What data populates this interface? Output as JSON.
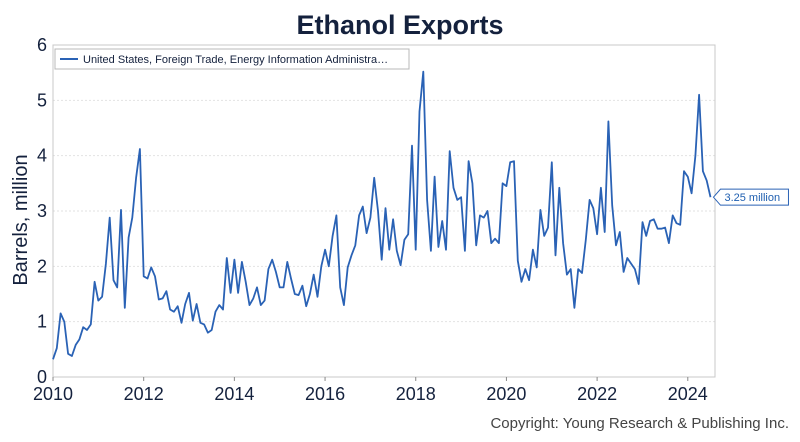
{
  "chart_data": {
    "type": "line",
    "title": "Ethanol Exports",
    "ylabel": "Barrels, million",
    "xlabel": "",
    "xlim": [
      2010.0,
      2024.6
    ],
    "ylim": [
      0,
      6
    ],
    "x_ticks": [
      2010,
      2012,
      2014,
      2016,
      2018,
      2020,
      2022,
      2024
    ],
    "y_ticks": [
      0,
      1,
      2,
      3,
      4,
      5,
      6
    ],
    "grid": true,
    "legend_position": "top-left",
    "last_value_label": "3.25 million",
    "copyright": "Copyright: Young Research & Publishing Inc.",
    "series": [
      {
        "name": "United States, Foreign Trade, Energy Information Administra…",
        "color": "#2a62b5",
        "start_year": 2010,
        "start_month": 1,
        "values": [
          0.32,
          0.52,
          1.15,
          1.0,
          0.42,
          0.38,
          0.58,
          0.68,
          0.9,
          0.85,
          0.95,
          1.72,
          1.38,
          1.45,
          2.05,
          2.88,
          1.75,
          1.62,
          3.02,
          1.25,
          2.52,
          2.88,
          3.6,
          4.12,
          1.82,
          1.78,
          1.98,
          1.82,
          1.4,
          1.42,
          1.55,
          1.22,
          1.18,
          1.28,
          0.98,
          1.32,
          1.52,
          1.02,
          1.32,
          0.98,
          0.95,
          0.8,
          0.85,
          1.18,
          1.3,
          1.22,
          2.15,
          1.52,
          2.12,
          1.52,
          2.08,
          1.72,
          1.3,
          1.42,
          1.62,
          1.3,
          1.38,
          1.95,
          2.12,
          1.9,
          1.62,
          1.62,
          2.08,
          1.78,
          1.5,
          1.48,
          1.65,
          1.28,
          1.5,
          1.85,
          1.45,
          2.0,
          2.3,
          2.0,
          2.55,
          2.92,
          1.62,
          1.3,
          1.98,
          2.2,
          2.38,
          2.92,
          3.08,
          2.6,
          2.88,
          3.6,
          3.0,
          2.12,
          3.05,
          2.3,
          2.85,
          2.28,
          2.02,
          2.48,
          2.58,
          4.18,
          2.3,
          4.8,
          5.52,
          3.2,
          2.28,
          3.62,
          2.35,
          2.82,
          2.3,
          4.08,
          3.42,
          3.2,
          3.25,
          2.28,
          3.9,
          3.5,
          2.38,
          2.92,
          2.88,
          3.0,
          2.42,
          2.5,
          2.42,
          3.5,
          3.45,
          3.88,
          3.9,
          2.1,
          1.72,
          1.95,
          1.75,
          2.3,
          1.98,
          3.02,
          2.55,
          2.7,
          3.88,
          2.2,
          3.42,
          2.42,
          1.85,
          1.95,
          1.25,
          1.95,
          1.88,
          2.48,
          3.2,
          3.05,
          2.58,
          3.42,
          2.62,
          4.62,
          3.1,
          2.38,
          2.62,
          1.9,
          2.15,
          2.05,
          1.95,
          1.68,
          2.8,
          2.55,
          2.82,
          2.85,
          2.68,
          2.68,
          2.7,
          2.42,
          2.92,
          2.78,
          2.75,
          3.72,
          3.62,
          3.32,
          4.0,
          5.1,
          3.72,
          3.55,
          3.25
        ]
      }
    ]
  }
}
